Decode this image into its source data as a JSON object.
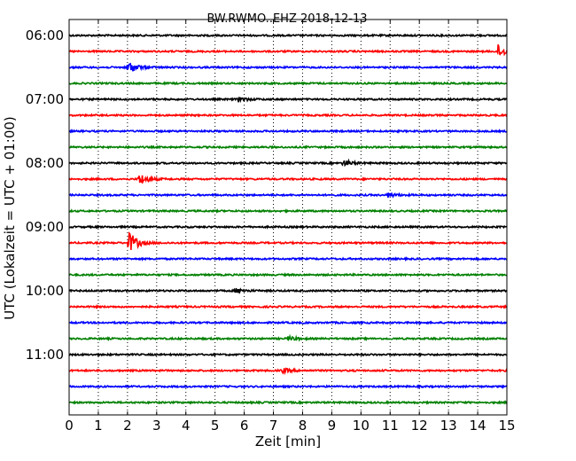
{
  "chart_data": {
    "type": "line",
    "title": "BW.RWMO..EHZ 2018-12-13",
    "xlabel": "Zeit  [min]",
    "ylabel": "UTC (Lokalzeit = UTC + 01:00)",
    "xlim": [
      0,
      15
    ],
    "x_ticks": [
      "0",
      "1",
      "2",
      "3",
      "4",
      "5",
      "6",
      "7",
      "8",
      "9",
      "10",
      "11",
      "12",
      "13",
      "14",
      "15"
    ],
    "y_ticks": [
      "06:00",
      "07:00",
      "08:00",
      "09:00",
      "10:00",
      "11:00"
    ],
    "grid": "vertical dotted",
    "trace_start_times": [
      "06:00",
      "06:15",
      "06:30",
      "06:45",
      "07:00",
      "07:15",
      "07:30",
      "07:45",
      "08:00",
      "08:15",
      "08:30",
      "08:45",
      "09:00",
      "09:15",
      "09:30",
      "09:45",
      "10:00",
      "10:15",
      "10:30",
      "10:45",
      "11:00",
      "11:15",
      "11:30",
      "11:45"
    ],
    "trace_colors": [
      "#000000",
      "#ff0000",
      "#0000ff",
      "#008000"
    ],
    "events": [
      {
        "trace": 1,
        "minute": 14.7,
        "amplitude": 0.9
      },
      {
        "trace": 2,
        "minute": 2.0,
        "amplitude": 1.0
      },
      {
        "trace": 4,
        "minute": 5.8,
        "amplitude": 0.3
      },
      {
        "trace": 8,
        "minute": 9.4,
        "amplitude": 0.45
      },
      {
        "trace": 9,
        "minute": 2.4,
        "amplitude": 0.8
      },
      {
        "trace": 10,
        "minute": 10.9,
        "amplitude": 0.35
      },
      {
        "trace": 13,
        "minute": 2.05,
        "amplitude": 1.6
      },
      {
        "trace": 16,
        "minute": 5.7,
        "amplitude": 0.35
      },
      {
        "trace": 19,
        "minute": 7.5,
        "amplitude": 0.3
      },
      {
        "trace": 21,
        "minute": 7.3,
        "amplitude": 0.35
      }
    ]
  }
}
